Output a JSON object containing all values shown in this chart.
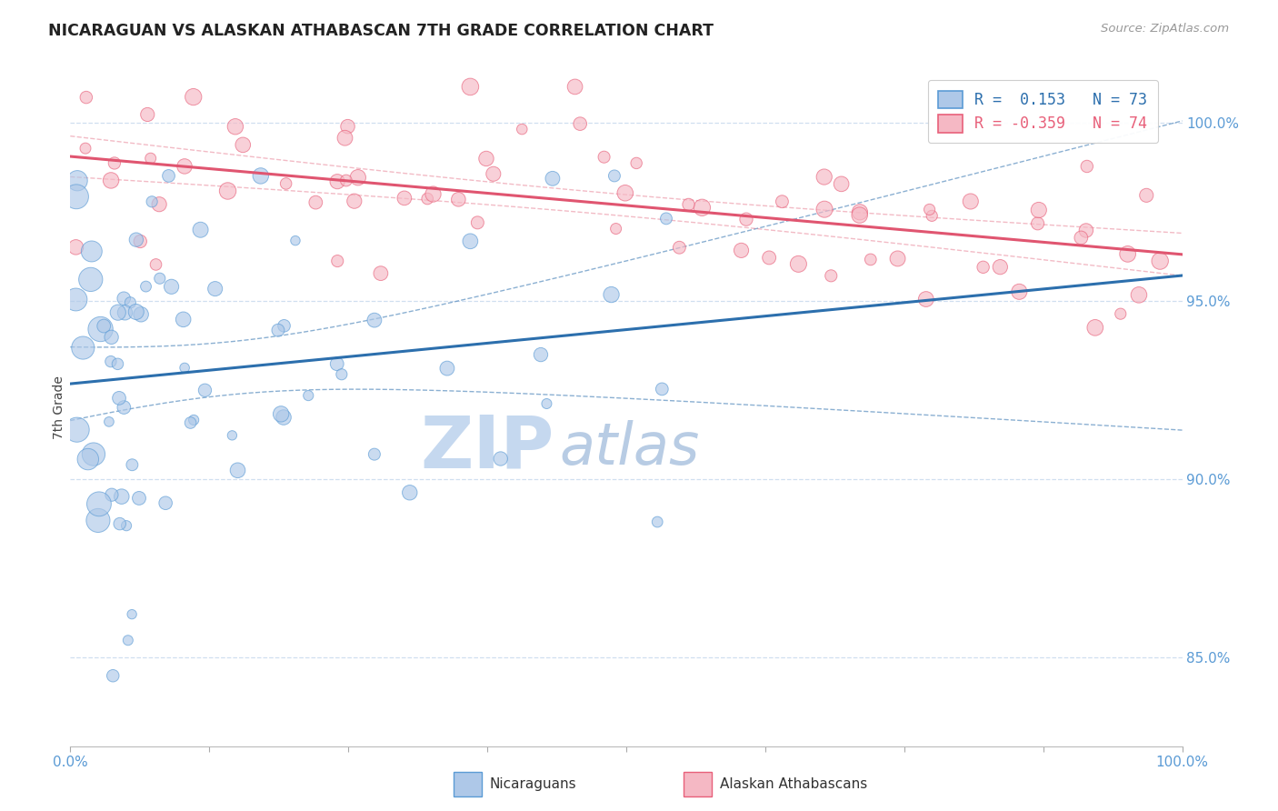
{
  "title": "NICARAGUAN VS ALASKAN ATHABASCAN 7TH GRADE CORRELATION CHART",
  "source": "Source: ZipAtlas.com",
  "ylabel": "7th Grade",
  "y_ticks": [
    85.0,
    90.0,
    95.0,
    100.0
  ],
  "x_range": [
    0.0,
    100.0
  ],
  "y_range": [
    82.5,
    101.5
  ],
  "legend_blue_label": "Nicaraguans",
  "legend_pink_label": "Alaskan Athabascans",
  "blue_R": 0.153,
  "blue_N": 73,
  "pink_R": -0.359,
  "pink_N": 74,
  "blue_color": "#aec8e8",
  "pink_color": "#f5b8c4",
  "blue_edge_color": "#5b9bd5",
  "pink_edge_color": "#e8607a",
  "blue_line_color": "#2c6fad",
  "pink_line_color": "#e05570",
  "watermark_zip_color": "#c5d8ef",
  "watermark_atlas_color": "#b8cce4",
  "grid_color": "#d0dff0",
  "tick_color": "#5b9bd5",
  "bg_color": "#ffffff"
}
